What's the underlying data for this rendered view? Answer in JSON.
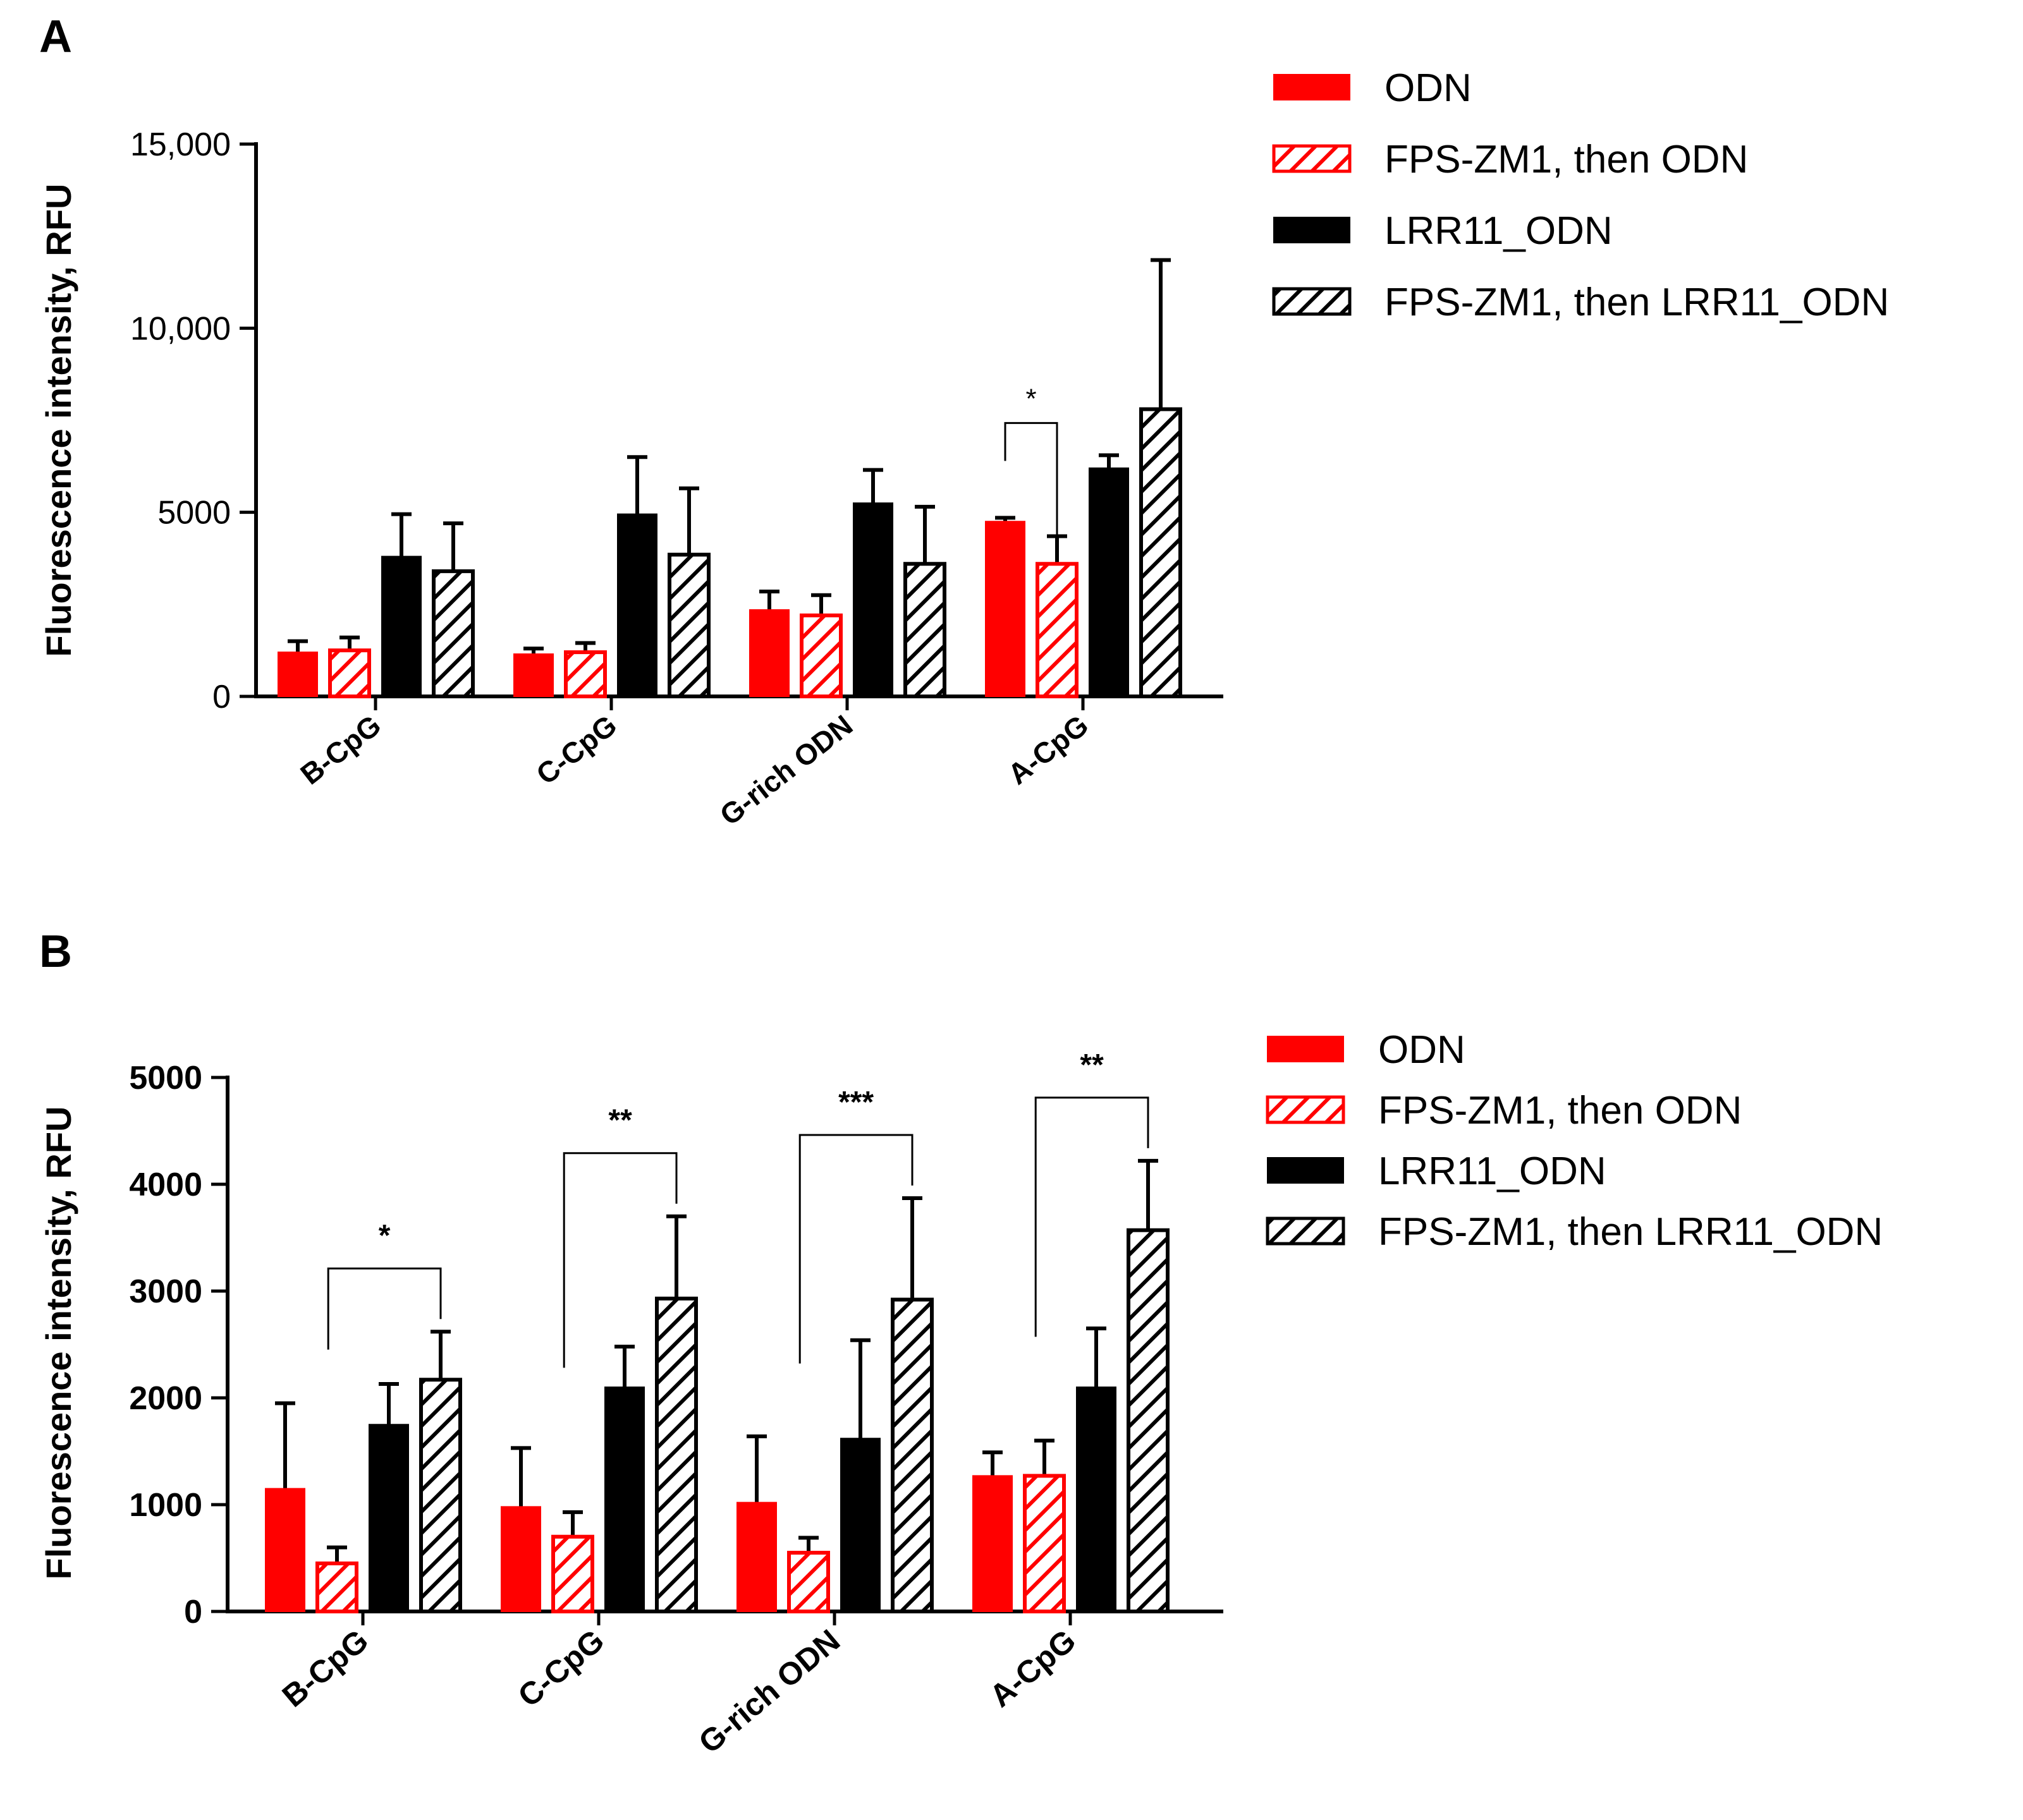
{
  "series_colors": {
    "red": "#ff0000",
    "black": "#000000"
  },
  "chart_data": [
    {
      "panel": "A",
      "type": "bar",
      "ylabel": "Fluorescence intensity, RFU",
      "ylim": [
        0,
        15000
      ],
      "yticks": [
        0,
        5000,
        10000,
        15000
      ],
      "ytick_labels": [
        "0",
        "5000",
        "10,000",
        "15,000"
      ],
      "categories": [
        "B-CpG",
        "C-CpG",
        "G-rich ODN",
        "A-CpG"
      ],
      "series": [
        {
          "name": "ODN",
          "fill": "solid",
          "color": "#ff0000",
          "values": [
            1200,
            1150,
            2350,
            4750
          ],
          "errors": [
            300,
            150,
            500,
            100
          ]
        },
        {
          "name": "FPS-ZM1, then ODN",
          "fill": "hatched",
          "color": "#ff0000",
          "values": [
            1250,
            1200,
            2200,
            3600
          ],
          "errors": [
            350,
            250,
            550,
            750
          ]
        },
        {
          "name": "LRR11_ODN",
          "fill": "solid",
          "color": "#000000",
          "values": [
            3800,
            4950,
            5250,
            6200
          ],
          "errors": [
            1150,
            1550,
            900,
            350
          ]
        },
        {
          "name": "FPS-ZM1, then LRR11_ODN",
          "fill": "hatched",
          "color": "#000000",
          "values": [
            3400,
            3850,
            3600,
            7800
          ],
          "errors": [
            1300,
            1800,
            1550,
            4050
          ]
        }
      ],
      "significance": [
        {
          "category": "A-CpG",
          "from_series": 0,
          "to_series": 1,
          "label": "*"
        }
      ],
      "legend_position": "top-right"
    },
    {
      "panel": "B",
      "type": "bar",
      "ylabel": "Fluorescence intensity, RFU",
      "ylim": [
        0,
        5000
      ],
      "yticks": [
        0,
        1000,
        2000,
        3000,
        4000,
        5000
      ],
      "ytick_labels": [
        "0",
        "1000",
        "2000",
        "3000",
        "4000",
        "5000"
      ],
      "categories": [
        "B-CpG",
        "C-CpG",
        "G-rich ODN",
        "A-CpG"
      ],
      "series": [
        {
          "name": "ODN",
          "fill": "solid",
          "color": "#ff0000",
          "values": [
            1150,
            980,
            1020,
            1270
          ],
          "errors": [
            800,
            550,
            620,
            220
          ]
        },
        {
          "name": "FPS-ZM1, then ODN",
          "fill": "hatched",
          "color": "#ff0000",
          "values": [
            450,
            700,
            550,
            1270
          ],
          "errors": [
            150,
            230,
            140,
            330
          ]
        },
        {
          "name": "LRR11_ODN",
          "fill": "solid",
          "color": "#000000",
          "values": [
            1750,
            2100,
            1620,
            2100
          ],
          "errors": [
            380,
            380,
            920,
            550
          ]
        },
        {
          "name": "FPS-ZM1, then LRR11_ODN",
          "fill": "hatched",
          "color": "#000000",
          "values": [
            2170,
            2930,
            2920,
            3570
          ],
          "errors": [
            450,
            770,
            950,
            650
          ]
        }
      ],
      "significance": [
        {
          "category": "B-CpG",
          "from_series": 1,
          "to_series": 3,
          "label": "*"
        },
        {
          "category": "C-CpG",
          "from_series": 1,
          "to_series": 3,
          "label": "**"
        },
        {
          "category": "G-rich ODN",
          "from_series": 1,
          "to_series": 3,
          "label": "***"
        },
        {
          "category": "A-CpG",
          "from_series": 1,
          "to_series": 3,
          "label": "**"
        }
      ],
      "legend_position": "top-right"
    }
  ]
}
